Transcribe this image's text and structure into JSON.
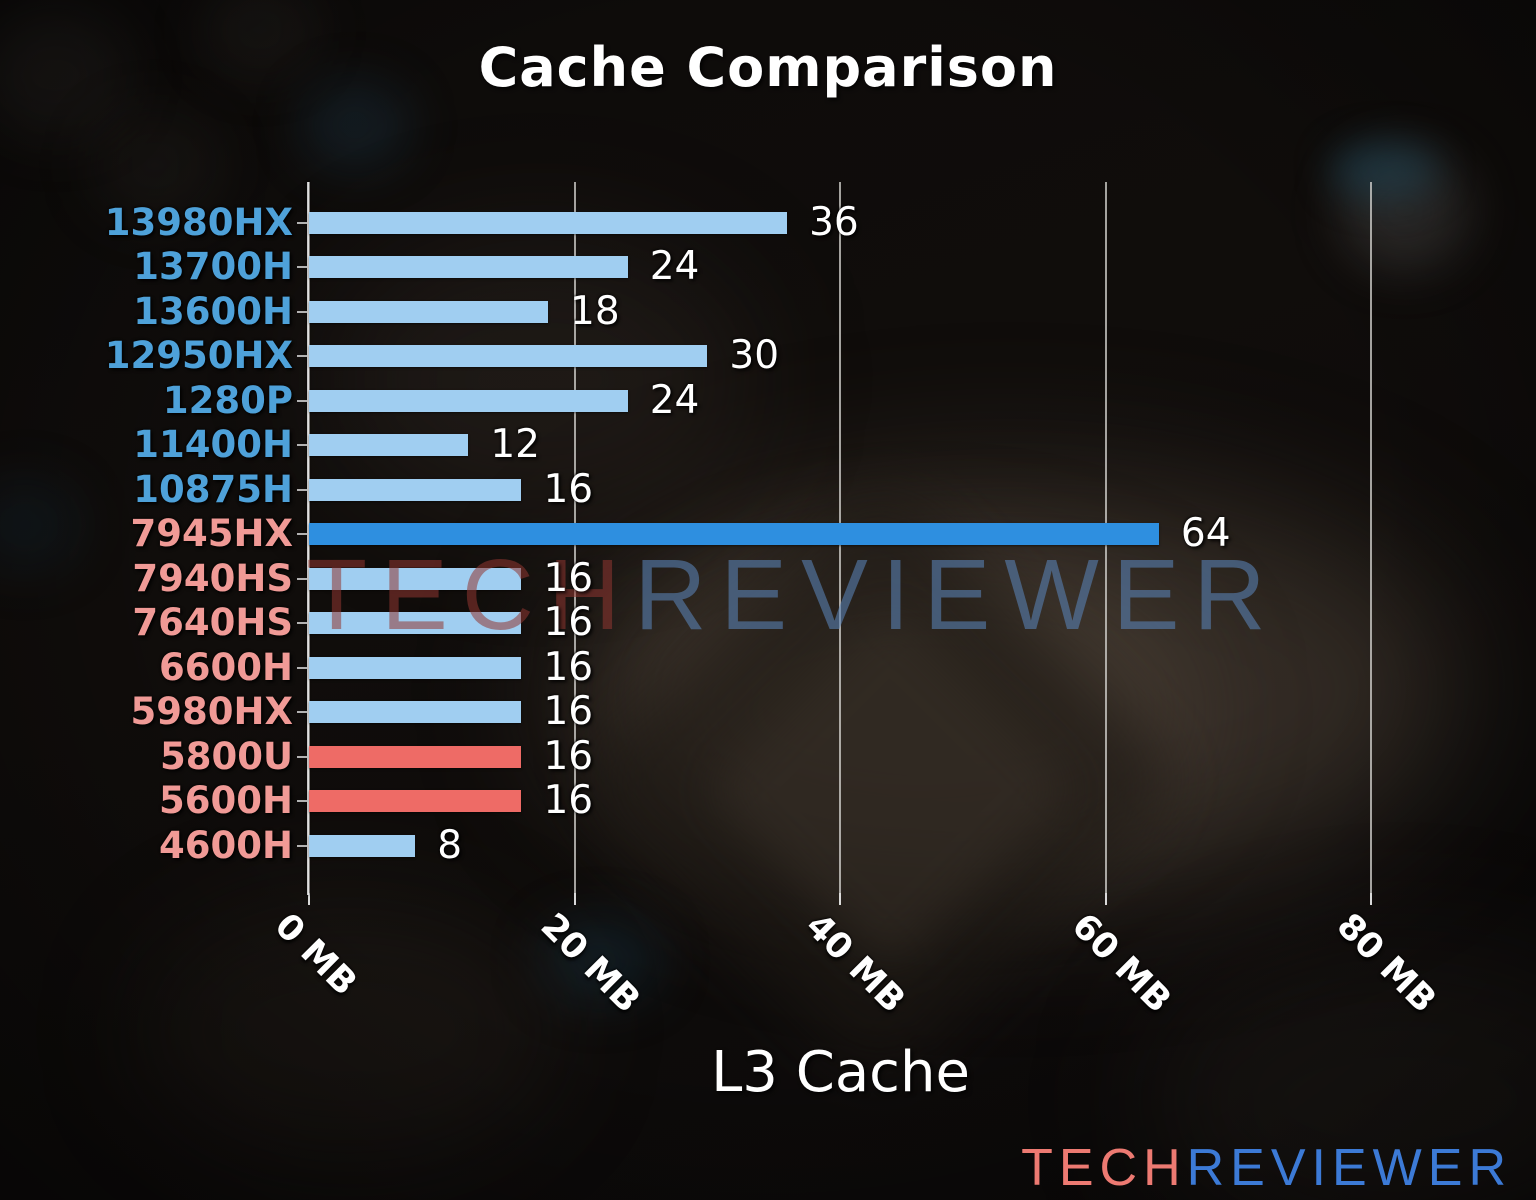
{
  "title": "Cache Comparison",
  "watermark": {
    "part1": "TECH",
    "part2": "REVIEWER"
  },
  "logo": {
    "part1": "TECH",
    "part2": "REVIEWER"
  },
  "colors": {
    "intel_label": "#4ea1d9",
    "amd_label": "#f09a96",
    "bar_light": "#a0cef1",
    "bar_highlight": "#2e8fe0",
    "bar_red": "#ee6b66",
    "value_text": "#ffffff",
    "logo_tech": "#ed7a72",
    "logo_reviewer": "#3c7ad6"
  },
  "chart_data": {
    "type": "bar",
    "orientation": "horizontal",
    "title": "Cache Comparison",
    "xlabel": "L3 Cache",
    "unit": "MB",
    "grid": true,
    "xlim": [
      0,
      84
    ],
    "x_tick_values": [
      0,
      20,
      40,
      60,
      80
    ],
    "x_tick_labels": [
      "0 MB",
      "20 MB",
      "40 MB",
      "60 MB",
      "80 MB"
    ],
    "categories": [
      "13980HX",
      "13700H",
      "13600H",
      "12950HX",
      "1280P",
      "11400H",
      "10875H",
      "7945HX",
      "7940HS",
      "7640HS",
      "6600H",
      "5980HX",
      "5800U",
      "5600H",
      "4600H"
    ],
    "values": [
      36,
      24,
      18,
      30,
      24,
      12,
      16,
      64,
      16,
      16,
      16,
      16,
      16,
      16,
      8
    ],
    "rows": [
      {
        "label": "13980HX",
        "value": 36,
        "label_color": "intel",
        "bar_color": "light"
      },
      {
        "label": "13700H",
        "value": 24,
        "label_color": "intel",
        "bar_color": "light"
      },
      {
        "label": "13600H",
        "value": 18,
        "label_color": "intel",
        "bar_color": "light"
      },
      {
        "label": "12950HX",
        "value": 30,
        "label_color": "intel",
        "bar_color": "light"
      },
      {
        "label": "1280P",
        "value": 24,
        "label_color": "intel",
        "bar_color": "light"
      },
      {
        "label": "11400H",
        "value": 12,
        "label_color": "intel",
        "bar_color": "light"
      },
      {
        "label": "10875H",
        "value": 16,
        "label_color": "intel",
        "bar_color": "light"
      },
      {
        "label": "7945HX",
        "value": 64,
        "label_color": "amd",
        "bar_color": "highlight"
      },
      {
        "label": "7940HS",
        "value": 16,
        "label_color": "amd",
        "bar_color": "light"
      },
      {
        "label": "7640HS",
        "value": 16,
        "label_color": "amd",
        "bar_color": "light"
      },
      {
        "label": "6600H",
        "value": 16,
        "label_color": "amd",
        "bar_color": "light"
      },
      {
        "label": "5980HX",
        "value": 16,
        "label_color": "amd",
        "bar_color": "light"
      },
      {
        "label": "5800U",
        "value": 16,
        "label_color": "amd",
        "bar_color": "red"
      },
      {
        "label": "5600H",
        "value": 16,
        "label_color": "amd",
        "bar_color": "red"
      },
      {
        "label": "4600H",
        "value": 8,
        "label_color": "amd",
        "bar_color": "light"
      }
    ]
  }
}
